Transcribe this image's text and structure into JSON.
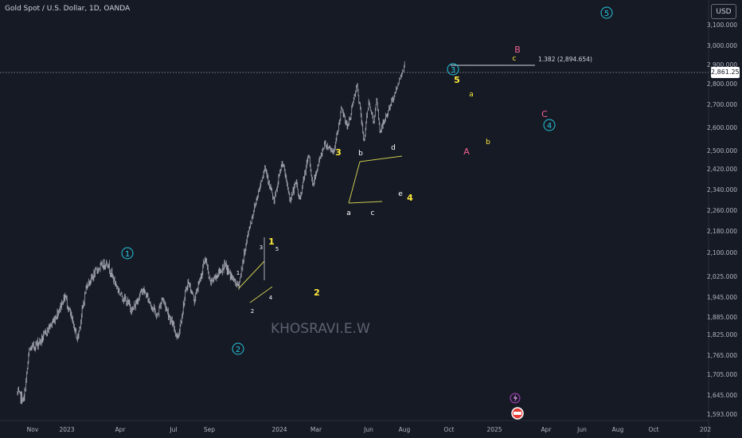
{
  "header": {
    "symbol_title": "Gold Spot / U.S. Dollar, 1D, OANDA",
    "currency_label": "USD"
  },
  "price_tag": "2,861.250",
  "watermark": "KHOSRAVI.E.W",
  "fib_label": "1.382 (2,894.654)",
  "colors": {
    "background": "#161a25",
    "candle": "#b2b5be",
    "cyan": "#26c6da",
    "yellow": "#ffeb3b",
    "red": "#f06292",
    "white": "#ffffff",
    "trendline": "#c9c94e",
    "axis_text": "#b2b5be"
  },
  "chart_data": {
    "type": "candlestick",
    "title": "Gold Spot / U.S. Dollar, 1D, OANDA",
    "current_price": 2861.25,
    "y_axis": {
      "ticks": [
        "3,100.000",
        "3,000.000",
        "2,900.000",
        "2,800.000",
        "2,700.000",
        "2,600.000",
        "2,500.000",
        "2,420.000",
        "2,340.000",
        "2,260.000",
        "2,180.000",
        "2,100.000",
        "2,025.000",
        "1,945.000",
        "1,885.000",
        "1,825.000",
        "1,765.000",
        "1,705.000",
        "1,645.000",
        "1,593.000"
      ]
    },
    "x_axis": {
      "ticks": [
        "Nov",
        "2023",
        "Apr",
        "Jul",
        "Sep",
        "2024",
        "Mar",
        "Jun",
        "Aug",
        "Oct",
        "2025",
        "Apr",
        "Jun",
        "Aug",
        "Oct",
        "202"
      ]
    },
    "price_path": [
      [
        "2022-10-20",
        1650
      ],
      [
        "2022-11-03",
        1630
      ],
      [
        "2022-11-15",
        1780
      ],
      [
        "2022-12-12",
        1810
      ],
      [
        "2023-01-10",
        1880
      ],
      [
        "2023-02-01",
        1950
      ],
      [
        "2023-02-28",
        1810
      ],
      [
        "2023-03-20",
        1990
      ],
      [
        "2023-04-13",
        2048
      ],
      [
        "2023-05-04",
        2070
      ],
      [
        "2023-05-31",
        1960
      ],
      [
        "2023-06-29",
        1905
      ],
      [
        "2023-07-20",
        1975
      ],
      [
        "2023-08-21",
        1885
      ],
      [
        "2023-09-01",
        1945
      ],
      [
        "2023-10-05",
        1815
      ],
      [
        "2023-10-27",
        2005
      ],
      [
        "2023-11-10",
        1935
      ],
      [
        "2023-12-04",
        2085
      ],
      [
        "2023-12-14",
        2000
      ],
      [
        "2024-01-15",
        2060
      ],
      [
        "2024-02-14",
        1985
      ],
      [
        "2024-03-08",
        2185
      ],
      [
        "2024-04-12",
        2430
      ],
      [
        "2024-05-02",
        2290
      ],
      [
        "2024-05-20",
        2450
      ],
      [
        "2024-06-06",
        2300
      ],
      [
        "2024-06-20",
        2370
      ],
      [
        "2024-06-26",
        2295
      ],
      [
        "2024-07-17",
        2480
      ],
      [
        "2024-07-25",
        2355
      ],
      [
        "2024-08-20",
        2530
      ],
      [
        "2024-09-10",
        2495
      ],
      [
        "2024-09-26",
        2680
      ],
      [
        "2024-10-10",
        2600
      ],
      [
        "2024-10-30",
        2790
      ],
      [
        "2024-11-14",
        2540
      ],
      [
        "2024-11-25",
        2720
      ],
      [
        "2024-12-05",
        2620
      ],
      [
        "2024-12-12",
        2720
      ],
      [
        "2024-12-19",
        2580
      ],
      [
        "2025-01-08",
        2680
      ],
      [
        "2025-01-22",
        2760
      ],
      [
        "2025-02-11",
        2900
      ]
    ],
    "annotations": {
      "cyan_circled": [
        "1",
        "2",
        "3",
        "4",
        "5"
      ],
      "yellow_primary": [
        "1",
        "2",
        "3",
        "4",
        "5"
      ],
      "red_letters": [
        "A",
        "B",
        "C"
      ],
      "white_small": [
        "1",
        "2",
        "3",
        "4",
        "5",
        "a",
        "b",
        "c",
        "d",
        "e"
      ],
      "yellow_small": [
        "a",
        "b",
        "c"
      ]
    }
  }
}
